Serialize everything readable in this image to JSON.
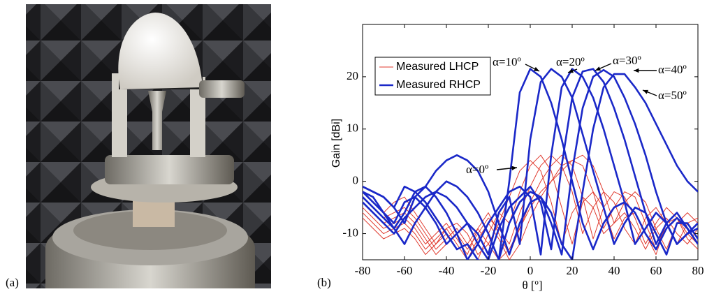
{
  "panel_a_label": "(a)",
  "panel_b_label": "(b)",
  "chart_data": {
    "type": "line",
    "xlabel": "θ [º]",
    "ylabel": "Gain [dBi]",
    "x": [
      -80,
      -75,
      -70,
      -65,
      -60,
      -55,
      -50,
      -45,
      -40,
      -35,
      -30,
      -25,
      -20,
      -15,
      -10,
      -5,
      0,
      5,
      10,
      15,
      20,
      25,
      30,
      35,
      40,
      45,
      50,
      55,
      60,
      65,
      70,
      75,
      80
    ],
    "xlim": [
      -80,
      80
    ],
    "xticks": [
      -80,
      -60,
      -40,
      -20,
      0,
      20,
      40,
      60,
      80
    ],
    "ylim": [
      -15,
      30
    ],
    "yticks": [
      -10,
      0,
      10,
      20
    ],
    "legend": "upper left",
    "grid": false,
    "series": [
      {
        "name": "Measured LHCP",
        "color": "#e03a2e",
        "curves": [
          [
            -2,
            -4,
            -6,
            -4,
            -3,
            -6,
            -9,
            -12,
            -9,
            -8,
            -10,
            -14,
            -12,
            -8,
            -3,
            2,
            4,
            2,
            -4,
            -12,
            -6,
            -3,
            -5,
            -10,
            -8,
            -6,
            -9,
            -13,
            -9,
            -7,
            -10,
            -12,
            -9
          ],
          [
            -3,
            -5,
            -7,
            -6,
            -5,
            -7,
            -10,
            -13,
            -11,
            -9,
            -12,
            -15,
            -10,
            -6,
            -8,
            -2,
            3,
            5,
            2,
            -5,
            -12,
            -4,
            -2,
            -5,
            -11,
            -7,
            -6,
            -10,
            -14,
            -8,
            -7,
            -10,
            -12
          ],
          [
            -4,
            -6,
            -8,
            -7,
            -6,
            -8,
            -11,
            -14,
            -12,
            -10,
            -13,
            -10,
            -7,
            -9,
            -12,
            -6,
            -1,
            3,
            5,
            3,
            -2,
            -10,
            -5,
            -2,
            -4,
            -9,
            -12,
            -7,
            -5,
            -8,
            -12,
            -8,
            -7
          ],
          [
            -5,
            -7,
            -9,
            -8,
            -7,
            -9,
            -12,
            -10,
            -8,
            -11,
            -14,
            -9,
            -6,
            -10,
            -14,
            -9,
            -4,
            0,
            3,
            5,
            3,
            -3,
            -11,
            -5,
            -2,
            -3,
            -7,
            -12,
            -8,
            -5,
            -7,
            -11,
            -13
          ],
          [
            -6,
            -8,
            -10,
            -9,
            -8,
            -10,
            -13,
            -11,
            -9,
            -12,
            -15,
            -11,
            -8,
            -11,
            -15,
            -12,
            -7,
            -3,
            0,
            3,
            4,
            3,
            -2,
            -9,
            -5,
            -2,
            -3,
            -8,
            -13,
            -8,
            -6,
            -9,
            -12
          ],
          [
            -7,
            -9,
            -11,
            -10,
            -9,
            -11,
            -14,
            -12,
            -10,
            -13,
            -12,
            -9,
            -12,
            -15,
            -13,
            -9,
            -5,
            -2,
            0,
            2,
            4,
            5,
            3,
            -2,
            -8,
            -4,
            -2,
            -4,
            -9,
            -13,
            -8,
            -6,
            -8
          ]
        ]
      },
      {
        "name": "Measured RHCP",
        "color": "#1a28c8",
        "curves": [
          [
            -1,
            -2,
            -3,
            -5,
            -1,
            -2,
            -4,
            -7,
            -10,
            -13,
            -12,
            -15,
            -16,
            -15,
            0,
            17,
            21.5,
            20,
            15,
            8,
            0,
            -8,
            -13,
            -8,
            -5,
            -4,
            -6,
            -10,
            -13,
            -9,
            -7,
            -9,
            -12
          ],
          [
            -2,
            -4,
            -6,
            -8,
            -4,
            -3,
            -5,
            -8,
            -12,
            -10,
            -8,
            -10,
            -14,
            -6,
            -3,
            -12,
            8,
            19,
            21.5,
            20,
            16,
            9,
            2,
            -5,
            -12,
            -8,
            -5,
            -6,
            -10,
            -14,
            -8,
            -8,
            -11
          ],
          [
            -3,
            -5,
            -7,
            -9,
            -6,
            -2,
            -1,
            -3,
            -6,
            -10,
            -15,
            -12,
            -8,
            -5,
            -2,
            -1,
            -3,
            -14,
            5,
            18,
            21.5,
            20,
            16,
            10,
            3,
            -4,
            -12,
            -9,
            -6,
            -8,
            -12,
            -10,
            -9
          ],
          [
            -4,
            -6,
            -8,
            -10,
            -7,
            -5,
            -3,
            -2,
            -3,
            -5,
            -8,
            -12,
            -15,
            -9,
            -5,
            -3,
            -1,
            -4,
            -13,
            3,
            16,
            21,
            21.5,
            19,
            14,
            8,
            1,
            -6,
            -12,
            -8,
            -6,
            -9,
            -12
          ],
          [
            -2,
            -3,
            -6,
            -9,
            -12,
            -8,
            -5,
            -2,
            0,
            -1,
            -3,
            -6,
            -10,
            -15,
            -8,
            -4,
            -2,
            -3,
            -8,
            -14,
            2,
            14,
            20,
            21.3,
            20,
            16,
            11,
            5,
            -2,
            -8,
            -12,
            -10,
            -8
          ],
          [
            -1,
            -2,
            -3,
            -5,
            -8,
            -3,
            -1,
            2,
            4,
            5,
            4,
            2,
            -2,
            -8,
            -14,
            -8,
            -4,
            -3,
            -6,
            -12,
            -15,
            -2,
            10,
            18,
            20.5,
            20.5,
            18,
            15,
            11,
            7,
            3,
            0,
            -2
          ]
        ]
      }
    ],
    "annotations": [
      "α=0º",
      "α=10º",
      "α=20º",
      "α=30º",
      "α=40º",
      "α=50º"
    ]
  }
}
